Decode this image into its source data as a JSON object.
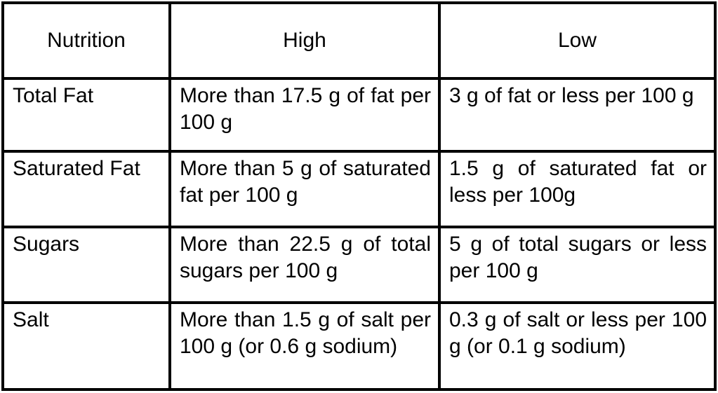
{
  "table": {
    "header": [
      "Nutrition",
      "High",
      "Low"
    ],
    "rows": [
      [
        "Total Fat",
        "More than 17.5 g of fat per 100 g",
        "3 g of fat or less per 100 g"
      ],
      [
        "Saturated Fat",
        "More than 5 g of saturated fat per 100 g",
        "1.5 g of saturated fat or less per 100g"
      ],
      [
        "Sugars",
        "More than 22.5 g of total sugars per 100 g",
        "5 g of total sugars or less per 100 g"
      ],
      [
        "Salt",
        "More than 1.5 g of salt per 100 g (or 0.6 g sodium)",
        "0.3 g of salt or less per 100 g (or 0.1 g sodium)"
      ]
    ]
  }
}
